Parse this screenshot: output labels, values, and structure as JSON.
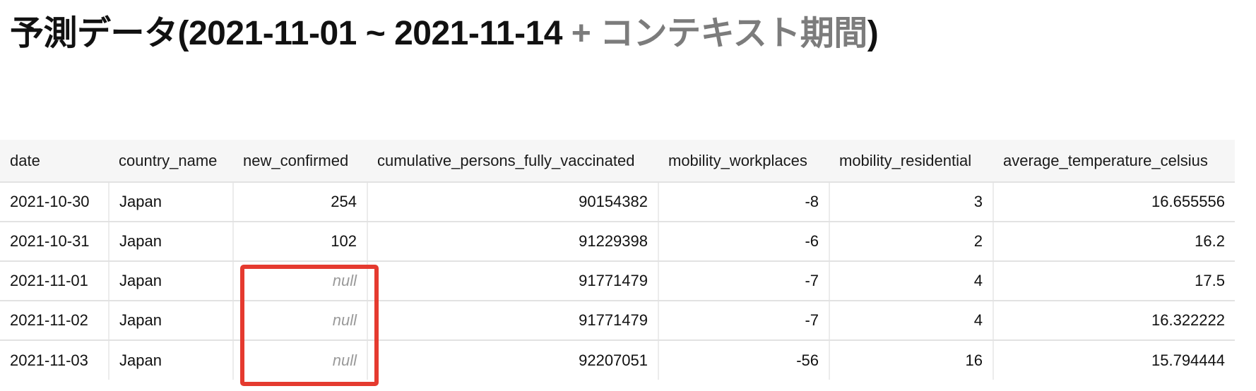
{
  "title": {
    "main": "予測データ(2021-11-01 ~ 2021-11-14 ",
    "muted": "+ コンテキスト期間",
    "close": ")"
  },
  "table": {
    "columns": [
      "date",
      "country_name",
      "new_confirmed",
      "cumulative_persons_fully_vaccinated",
      "mobility_workplaces",
      "mobility_residential",
      "average_temperature_celsius"
    ],
    "rows": [
      [
        "2021-10-30",
        "Japan",
        "254",
        "90154382",
        "-8",
        "3",
        "16.655556"
      ],
      [
        "2021-10-31",
        "Japan",
        "102",
        "91229398",
        "-6",
        "2",
        "16.2"
      ],
      [
        "2021-11-01",
        "Japan",
        "null",
        "91771479",
        "-7",
        "4",
        "17.5"
      ],
      [
        "2021-11-02",
        "Japan",
        "null",
        "91771479",
        "-7",
        "4",
        "16.322222"
      ],
      [
        "2021-11-03",
        "Japan",
        "null",
        "92207051",
        "-56",
        "16",
        "15.794444"
      ]
    ]
  },
  "highlight": {
    "color": "#e53a2f",
    "column": "new_confirmed",
    "rows": [
      "2021-11-01",
      "2021-11-02",
      "2021-11-03"
    ]
  }
}
